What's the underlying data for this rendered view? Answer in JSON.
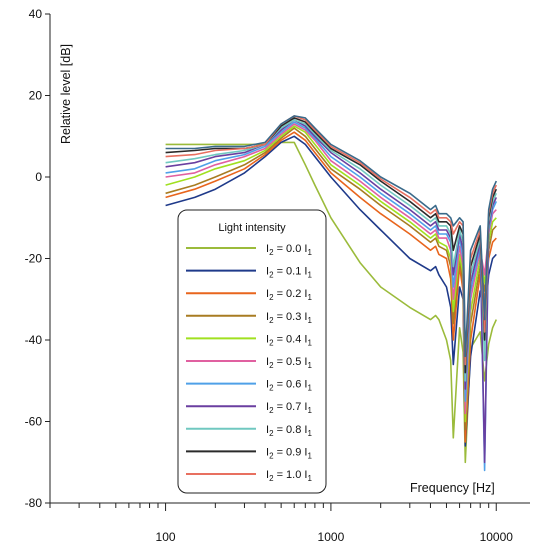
{
  "chart_data": {
    "type": "line",
    "title": "",
    "xlabel": "Frequency [Hz]",
    "ylabel": "Relative level [dB]",
    "x_scale": "log",
    "xlim": [
      20,
      16000
    ],
    "ylim": [
      -80,
      40
    ],
    "x_ticks": [
      100,
      1000,
      10000
    ],
    "x_tick_labels": [
      "100",
      "1000",
      "10000"
    ],
    "y_ticks": [
      -80,
      -60,
      -40,
      -20,
      0,
      20,
      40
    ],
    "y_tick_labels": [
      "-80",
      "-60",
      "-40",
      "-20",
      "0",
      "20",
      "40"
    ],
    "grid": false,
    "legend": {
      "title": "Light intensity",
      "placement": "center-left",
      "entries": [
        {
          "base": "I",
          "sub1": "2",
          "mid": " = 0.0 I",
          "sub2": "1"
        },
        {
          "base": "I",
          "sub1": "2",
          "mid": " = 0.1 I",
          "sub2": "1"
        },
        {
          "base": "I",
          "sub1": "2",
          "mid": " = 0.2 I",
          "sub2": "1"
        },
        {
          "base": "I",
          "sub1": "2",
          "mid": " = 0.3 I",
          "sub2": "1"
        },
        {
          "base": "I",
          "sub1": "2",
          "mid": " = 0.4 I",
          "sub2": "1"
        },
        {
          "base": "I",
          "sub1": "2",
          "mid": " = 0.5 I",
          "sub2": "1"
        },
        {
          "base": "I",
          "sub1": "2",
          "mid": " = 0.6 I",
          "sub2": "1"
        },
        {
          "base": "I",
          "sub1": "2",
          "mid": " = 0.7 I",
          "sub2": "1"
        },
        {
          "base": "I",
          "sub1": "2",
          "mid": " = 0.8 I",
          "sub2": "1"
        },
        {
          "base": "I",
          "sub1": "2",
          "mid": " = 0.9 I",
          "sub2": "1"
        },
        {
          "base": "I",
          "sub1": "2",
          "mid": " = 1.0 I",
          "sub2": "1"
        }
      ]
    },
    "series": [
      {
        "color": "#9bbb3b",
        "x": [
          100,
          150,
          200,
          300,
          400,
          500,
          600,
          700,
          800,
          1000,
          1500,
          2000,
          3000,
          4000,
          4300,
          4500,
          5000,
          5300,
          5500,
          6000,
          6300,
          6500,
          7000,
          8000,
          8500,
          9000,
          9500,
          10000
        ],
        "y": [
          8,
          8,
          8,
          8,
          8,
          8.5,
          8.5,
          3,
          -2,
          -10,
          -21,
          -27,
          -32,
          -35,
          -34,
          -35,
          -40,
          -45,
          -64,
          -37,
          -43,
          -70,
          -42,
          -38,
          -50,
          -41,
          -37,
          -35
        ]
      },
      {
        "color": "#1f3a8a",
        "x": [
          100,
          150,
          200,
          300,
          400,
          500,
          600,
          700,
          800,
          1000,
          1500,
          2000,
          3000,
          4000,
          4300,
          4500,
          5000,
          5300,
          5500,
          6000,
          6300,
          6500,
          7000,
          8000,
          8500,
          9000,
          9500,
          10000
        ],
        "y": [
          -7,
          -5,
          -3,
          1,
          5,
          8.5,
          10,
          8,
          5,
          0,
          -8,
          -13,
          -20,
          -23,
          -22,
          -24,
          -27,
          -32,
          -46,
          -27,
          -30,
          -66,
          -44,
          -28,
          -35,
          -24,
          -20,
          -19
        ]
      },
      {
        "color": "#e8651d",
        "x": [
          100,
          150,
          200,
          300,
          400,
          500,
          600,
          700,
          800,
          1000,
          1500,
          2000,
          3000,
          4000,
          4300,
          4500,
          5000,
          5300,
          5500,
          6000,
          6300,
          6500,
          7000,
          8000,
          8500,
          9000,
          9500,
          10000
        ],
        "y": [
          -5,
          -3,
          -1,
          2,
          5.5,
          9,
          11,
          9,
          6,
          1,
          -5,
          -9,
          -14,
          -18,
          -17,
          -19,
          -20,
          -25,
          -40,
          -22,
          -28,
          -65,
          -40,
          -24,
          -30,
          -20,
          -16,
          -15
        ]
      },
      {
        "color": "#a87c22",
        "x": [
          100,
          150,
          200,
          300,
          400,
          500,
          600,
          700,
          800,
          1000,
          1500,
          2000,
          3000,
          4000,
          4300,
          4500,
          5000,
          5300,
          5500,
          6000,
          6300,
          6500,
          7000,
          8000,
          8500,
          9000,
          9500,
          10000
        ],
        "y": [
          -4,
          -2,
          0,
          3,
          6,
          9.5,
          12,
          10,
          7,
          2,
          -3,
          -7,
          -12,
          -16,
          -15,
          -17,
          -18,
          -22,
          -36,
          -20,
          -26,
          -62,
          -36,
          -22,
          -28,
          -18,
          -13,
          -12
        ]
      },
      {
        "color": "#a0e020",
        "x": [
          100,
          150,
          200,
          300,
          400,
          500,
          600,
          700,
          800,
          1000,
          1500,
          2000,
          3000,
          4000,
          4300,
          4500,
          5000,
          5300,
          5500,
          6000,
          6300,
          6500,
          7000,
          8000,
          8500,
          9000,
          9500,
          10000
        ],
        "y": [
          -2,
          0,
          2,
          4,
          6.5,
          10,
          12.5,
          11,
          8,
          3,
          -2,
          -6,
          -11,
          -15,
          -14,
          -16,
          -17,
          -20,
          -33,
          -19,
          -24,
          -60,
          -33,
          -20,
          -26,
          -16,
          -11,
          -10
        ]
      },
      {
        "color": "#e060a0",
        "x": [
          100,
          150,
          200,
          300,
          400,
          500,
          600,
          700,
          800,
          1000,
          1500,
          2000,
          3000,
          4000,
          4300,
          4500,
          5000,
          5300,
          5500,
          6000,
          6300,
          6500,
          7000,
          8000,
          8500,
          9000,
          9500,
          10000
        ],
        "y": [
          0,
          1,
          3,
          5,
          7,
          10.5,
          13,
          11.5,
          9,
          4,
          -1,
          -5,
          -10,
          -14,
          -13,
          -15,
          -15,
          -18,
          -30,
          -17,
          -22,
          -58,
          -30,
          -18,
          -24,
          -14,
          -9,
          -8
        ]
      },
      {
        "color": "#4fa0e8",
        "x": [
          100,
          150,
          200,
          300,
          400,
          500,
          600,
          700,
          800,
          1000,
          1500,
          2000,
          3000,
          4000,
          4300,
          4500,
          5000,
          5300,
          5500,
          6000,
          6300,
          6500,
          7000,
          8000,
          8500,
          9000,
          9500,
          10000
        ],
        "y": [
          1,
          2,
          4,
          5.5,
          7.5,
          11,
          13.5,
          12,
          9.5,
          5,
          0,
          -4,
          -9,
          -13,
          -12,
          -14,
          -14,
          -16,
          -27,
          -15,
          -20,
          -55,
          -28,
          -17,
          -72,
          -13,
          -8,
          -6
        ]
      },
      {
        "color": "#6a3fa0",
        "x": [
          100,
          150,
          200,
          300,
          400,
          500,
          600,
          700,
          800,
          1000,
          1500,
          2000,
          3000,
          4000,
          4300,
          4500,
          5000,
          5300,
          5500,
          6000,
          6300,
          6500,
          7000,
          8000,
          8500,
          9000,
          9500,
          10000
        ],
        "y": [
          2.5,
          3.5,
          5,
          6,
          8,
          11.5,
          14,
          12.5,
          10,
          6,
          1,
          -3,
          -8,
          -12,
          -11,
          -13,
          -13,
          -15,
          -24,
          -14,
          -18,
          -52,
          -26,
          -16,
          -70,
          -12,
          -7,
          -5
        ]
      },
      {
        "color": "#70c8c0",
        "x": [
          100,
          150,
          200,
          300,
          400,
          500,
          600,
          700,
          800,
          1000,
          1500,
          2000,
          3000,
          4000,
          4300,
          4500,
          5000,
          5300,
          5500,
          6000,
          6300,
          6500,
          7000,
          8000,
          8500,
          9000,
          9500,
          10000
        ],
        "y": [
          3.5,
          4.5,
          5.5,
          6.5,
          8,
          12,
          14,
          13,
          10.5,
          6.5,
          2,
          -2,
          -7,
          -11,
          -10,
          -12,
          -12,
          -14,
          -22,
          -13,
          -16,
          -50,
          -24,
          -15,
          -45,
          -11,
          -6,
          -4
        ]
      },
      {
        "color": "#2a2a2a",
        "x": [
          100,
          150,
          200,
          300,
          400,
          500,
          600,
          700,
          800,
          1000,
          1500,
          2000,
          3000,
          4000,
          4300,
          4500,
          5000,
          5300,
          5500,
          6000,
          6300,
          6500,
          7000,
          8000,
          8500,
          9000,
          9500,
          10000
        ],
        "y": [
          6,
          6.5,
          7,
          7,
          8,
          12.5,
          14.5,
          13.5,
          11,
          7,
          3,
          -1,
          -6,
          -10,
          -9,
          -11,
          -11,
          -12,
          -18,
          -12,
          -14,
          -48,
          -22,
          -14,
          -40,
          -10,
          -5,
          -3
        ]
      },
      {
        "color": "#e87060",
        "x": [
          100,
          150,
          200,
          300,
          400,
          500,
          600,
          700,
          800,
          1000,
          1500,
          2000,
          3000,
          4000,
          4300,
          4500,
          5000,
          5300,
          5500,
          6000,
          6300,
          6500,
          7000,
          8000,
          8500,
          9000,
          9500,
          10000
        ],
        "y": [
          5,
          5.5,
          6.5,
          7,
          8,
          13,
          15,
          14,
          11.5,
          7.5,
          3.5,
          -0.5,
          -5,
          -9,
          -8,
          -10,
          -10,
          -11,
          -14,
          -11,
          -12,
          -46,
          -20,
          -13,
          -38,
          -9,
          -4,
          -2
        ]
      },
      {
        "color": "#3a6a8a",
        "x": [
          100,
          150,
          200,
          300,
          400,
          500,
          600,
          700,
          800,
          1000,
          1500,
          2000,
          3000,
          4000,
          4300,
          4500,
          5000,
          5300,
          5500,
          6000,
          6300,
          6500,
          7000,
          8000,
          8500,
          9000,
          9500,
          10000
        ],
        "y": [
          7,
          7,
          7.5,
          7.5,
          8.5,
          13,
          15,
          14.5,
          12,
          8,
          4,
          0,
          -4,
          -8,
          -7,
          -9,
          -9,
          -10,
          -12,
          -10,
          -11,
          -44,
          -18,
          -12,
          -35,
          -8,
          -3,
          -1
        ]
      }
    ]
  }
}
